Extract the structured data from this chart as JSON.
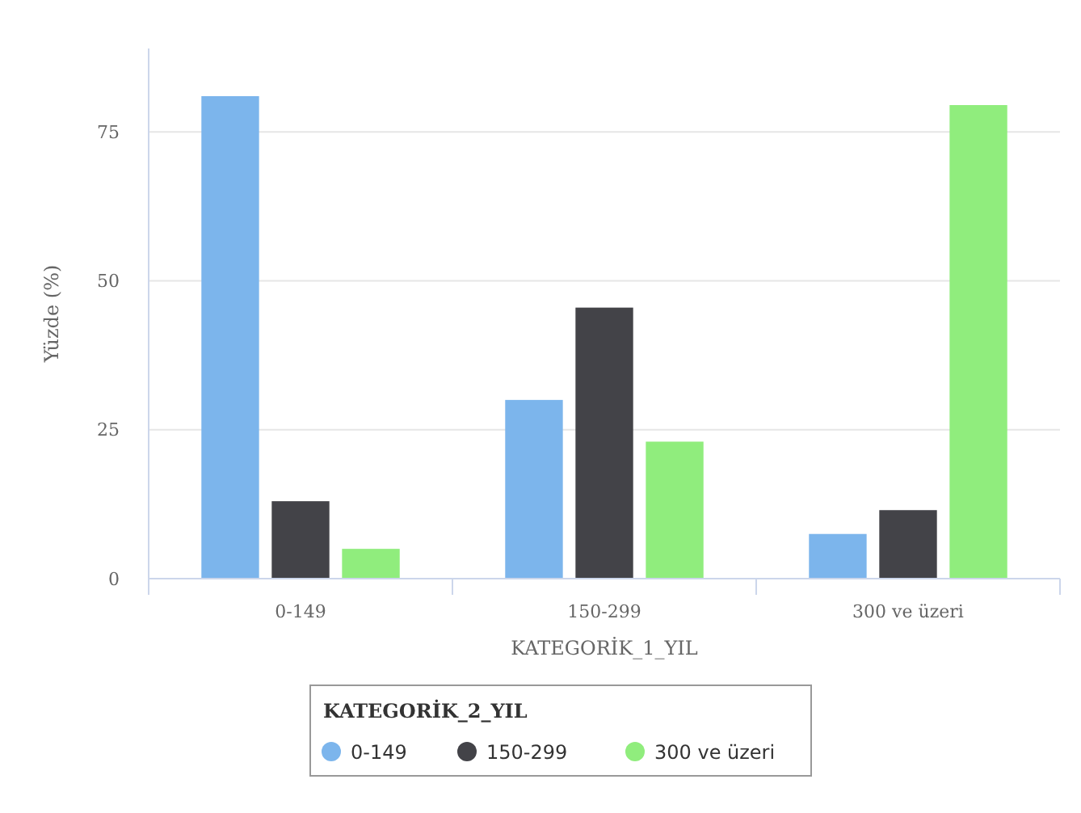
{
  "chart_data": {
    "type": "bar",
    "xlabel": "KATEGORİK_1_YIL",
    "ylabel": "Yüzde (%)",
    "legend_title": "KATEGORİK_2_YIL",
    "categories": [
      "0-149",
      "150-299",
      "300 ve üzeri"
    ],
    "series": [
      {
        "name": "0-149",
        "color": "#7cb5ec",
        "values": [
          81,
          30,
          7.5
        ]
      },
      {
        "name": "150-299",
        "color": "#434348",
        "values": [
          13,
          45.5,
          11.5
        ]
      },
      {
        "name": "300 ve üzeri",
        "color": "#90ed7d",
        "values": [
          5,
          23,
          79.5
        ]
      }
    ],
    "ylim": [
      0,
      89
    ],
    "yticks": [
      0,
      25,
      50,
      75
    ],
    "grid": "y",
    "legend": "bottom"
  }
}
